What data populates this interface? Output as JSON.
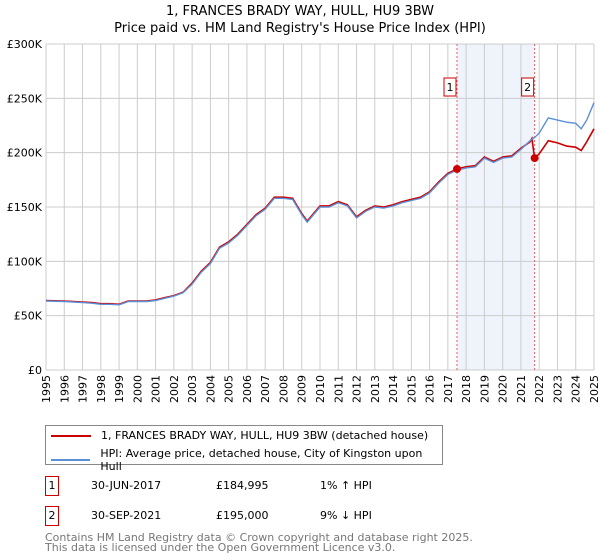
{
  "title": "1, FRANCES BRADY WAY, HULL, HU9 3BW",
  "subtitle": "Price paid vs. HM Land Registry's House Price Index (HPI)",
  "legend": [
    {
      "label": "1, FRANCES BRADY WAY, HULL, HU9 3BW (detached house)",
      "color": "#cc0000"
    },
    {
      "label": "HPI: Average price, detached house, City of Kingston upon Hull",
      "color": "#5b8fd6"
    }
  ],
  "sales": [
    {
      "num": "1",
      "date": "30-JUN-2017",
      "price": "£184,995",
      "hpi": "1% ↑ HPI",
      "x": 2017.5,
      "y": 184995
    },
    {
      "num": "2",
      "date": "30-SEP-2021",
      "price": "£195,000",
      "hpi": "9% ↓ HPI",
      "x": 2021.75,
      "y": 195000
    }
  ],
  "footer": [
    "Contains HM Land Registry data © Crown copyright and database right 2025.",
    "This data is licensed under the Open Government Licence v3.0."
  ],
  "chart_data": {
    "type": "line",
    "xlim": [
      1995,
      2025
    ],
    "ylim": [
      0,
      300000
    ],
    "yticks": [
      0,
      50000,
      100000,
      150000,
      200000,
      250000,
      300000
    ],
    "ytick_labels": [
      "£0",
      "£50K",
      "£100K",
      "£150K",
      "£200K",
      "£250K",
      "£300K"
    ],
    "xticks": [
      "1995",
      "1996",
      "1997",
      "1998",
      "1999",
      "2000",
      "2001",
      "2002",
      "2003",
      "2004",
      "2005",
      "2006",
      "2007",
      "2008",
      "2009",
      "2010",
      "2011",
      "2012",
      "2013",
      "2014",
      "2015",
      "2016",
      "2017",
      "2018",
      "2019",
      "2020",
      "2021",
      "2022",
      "2023",
      "2024",
      "2025"
    ],
    "shaded_range": [
      2017.5,
      2021.75
    ],
    "series": [
      {
        "name": "HPI",
        "color": "#5b8fd6",
        "x": [
          1995,
          1996,
          1997,
          1997.5,
          1998,
          1998.5,
          1999,
          1999.5,
          2000,
          2000.5,
          2001,
          2001.5,
          2002,
          2002.5,
          2003,
          2003.5,
          2004,
          2004.5,
          2005,
          2005.5,
          2006,
          2006.5,
          2007,
          2007.5,
          2008,
          2008.5,
          2009,
          2009.3,
          2009.7,
          2010,
          2010.5,
          2011,
          2011.5,
          2012,
          2012.5,
          2013,
          2013.5,
          2014,
          2014.5,
          2015,
          2015.5,
          2016,
          2016.5,
          2017,
          2017.5,
          2018,
          2018.5,
          2019,
          2019.5,
          2020,
          2020.5,
          2021,
          2021.5,
          2021.75,
          2022,
          2022.5,
          2023,
          2023.5,
          2024,
          2024.3,
          2024.6,
          2025
        ],
        "y": [
          63.5,
          63,
          62,
          61.5,
          60.5,
          60.5,
          60,
          63,
          63,
          63,
          64,
          66,
          68,
          71,
          79,
          90,
          98,
          112,
          117,
          124,
          133,
          142,
          148,
          158,
          158,
          157,
          143,
          136,
          144,
          150,
          150,
          154,
          151,
          140,
          146,
          150,
          149,
          151,
          154,
          156,
          158,
          163,
          172,
          180,
          184,
          186,
          187,
          195,
          191,
          195,
          196,
          203,
          211,
          214,
          218,
          232,
          230,
          228,
          227,
          222,
          230,
          246
        ]
      },
      {
        "name": "Price paid",
        "color": "#cc0000",
        "x": [
          1995,
          1996,
          1997,
          1997.5,
          1998,
          1998.5,
          1999,
          1999.5,
          2000,
          2000.5,
          2001,
          2001.5,
          2002,
          2002.5,
          2003,
          2003.5,
          2004,
          2004.5,
          2005,
          2005.5,
          2006,
          2006.5,
          2007,
          2007.5,
          2008,
          2008.5,
          2009,
          2009.3,
          2009.7,
          2010,
          2010.5,
          2011,
          2011.5,
          2012,
          2012.5,
          2013,
          2013.5,
          2014,
          2014.5,
          2015,
          2015.5,
          2016,
          2016.5,
          2017,
          2017.5,
          2018,
          2018.5,
          2019,
          2019.5,
          2020,
          2020.5,
          2021,
          2021.5,
          2021.6,
          2021.75,
          2022,
          2022.5,
          2023,
          2023.5,
          2024,
          2024.3,
          2024.6,
          2025
        ],
        "y": [
          64,
          63.5,
          62.5,
          62,
          61,
          61,
          60.5,
          63.5,
          63.5,
          63.5,
          64.5,
          66.5,
          68.5,
          71.5,
          80,
          91,
          99,
          113,
          118,
          125,
          134,
          143,
          149,
          159,
          159,
          158,
          144,
          137,
          145,
          151,
          151,
          155,
          152,
          141,
          147,
          151,
          150,
          152,
          155,
          157,
          159,
          164,
          173,
          181,
          185,
          187,
          188,
          196,
          192,
          196,
          197,
          204,
          210,
          213,
          195,
          199,
          211,
          209,
          206,
          205,
          202,
          210,
          222
        ]
      }
    ]
  }
}
